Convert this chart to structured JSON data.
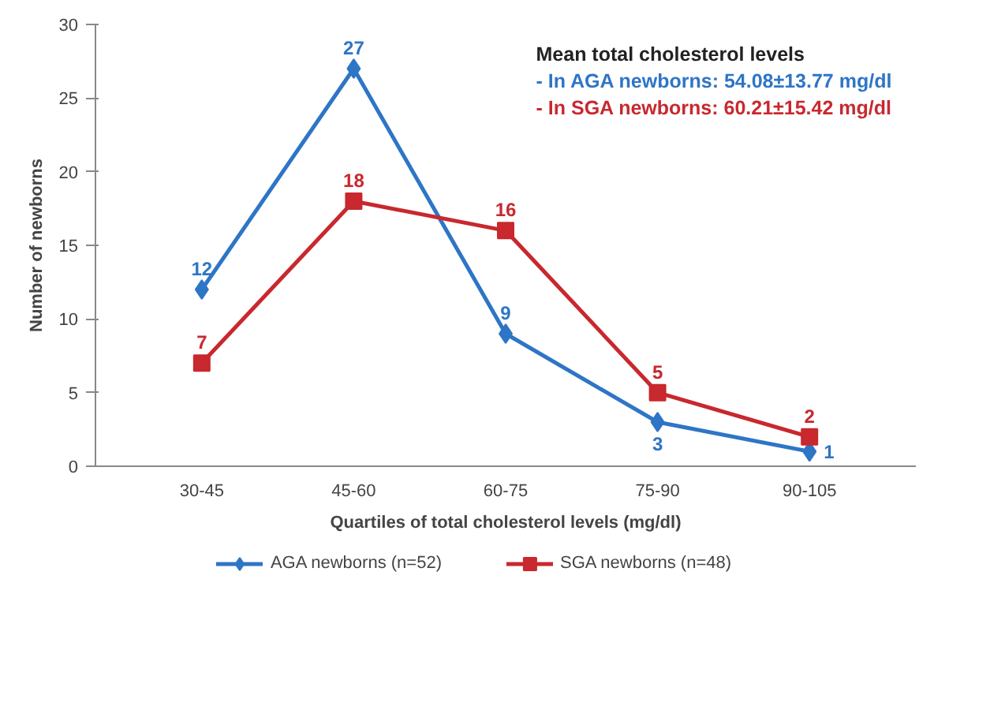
{
  "chart_data": {
    "type": "line",
    "xlabel": "Quartiles of total cholesterol levels (mg/dl)",
    "ylabel": "Number of newborns",
    "categories": [
      "30-45",
      "45-60",
      "60-75",
      "75-90",
      "90-105"
    ],
    "series": [
      {
        "name": "AGA newborns (n=52)",
        "color": "#2e75c6",
        "values": [
          12,
          27,
          9,
          3,
          1
        ],
        "marker": "diamond"
      },
      {
        "name": "SGA newborns (n=48)",
        "color": "#c8282e",
        "values": [
          7,
          18,
          16,
          5,
          2
        ],
        "marker": "square"
      }
    ],
    "ylim": [
      0,
      30
    ],
    "yticks": [
      0,
      5,
      10,
      15,
      20,
      25,
      30
    ],
    "grid": false,
    "legend": "bottom",
    "data_labels": true,
    "annotations": [
      "Mean total cholesterol levels",
      "- In AGA newborns: 54.08±13.77 mg/dl",
      "- In SGA newborns: 60.21±15.42 mg/dl"
    ]
  }
}
